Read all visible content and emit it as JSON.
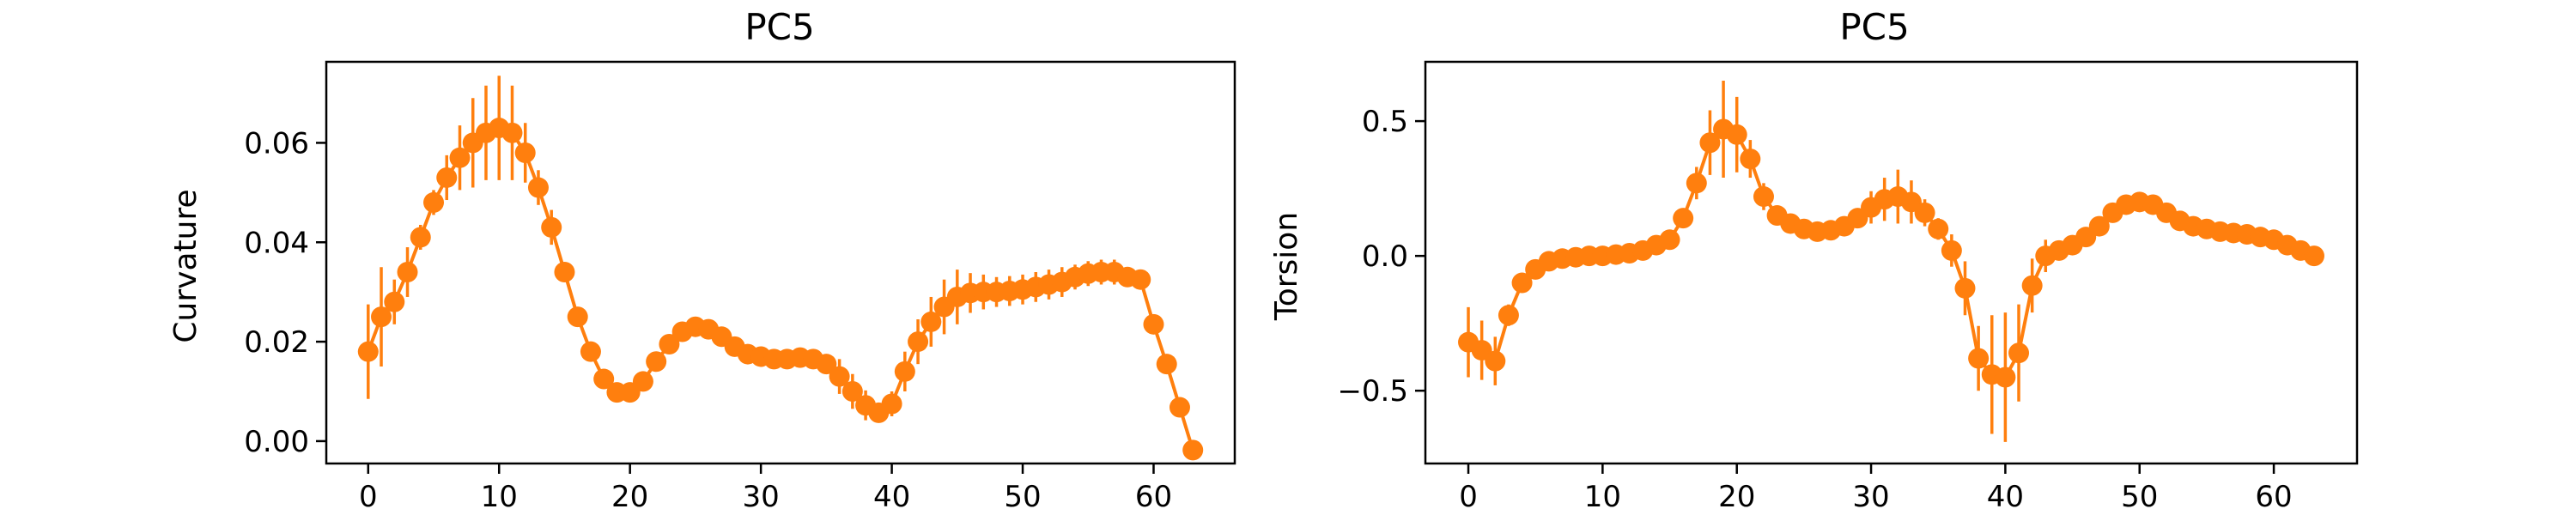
{
  "chart_data": [
    {
      "type": "line",
      "title": "PC5",
      "xlabel": "",
      "ylabel": "Curvature",
      "xlim": [
        -3.2,
        66.2
      ],
      "ylim": [
        -0.0045,
        0.0763
      ],
      "xticks": [
        0,
        10,
        20,
        30,
        40,
        50,
        60
      ],
      "yticks": [
        0.0,
        0.02,
        0.04,
        0.06
      ],
      "ytick_labels": [
        "0.00",
        "0.02",
        "0.04",
        "0.06"
      ],
      "series": [
        {
          "color": "#ff7f0e",
          "marker": "circle",
          "x": [
            0,
            1,
            2,
            3,
            4,
            5,
            6,
            7,
            8,
            9,
            10,
            11,
            12,
            13,
            14,
            15,
            16,
            17,
            18,
            19,
            20,
            21,
            22,
            23,
            24,
            25,
            26,
            27,
            28,
            29,
            30,
            31,
            32,
            33,
            34,
            35,
            36,
            37,
            38,
            39,
            40,
            41,
            42,
            43,
            44,
            45,
            46,
            47,
            48,
            49,
            50,
            51,
            52,
            53,
            54,
            55,
            56,
            57,
            58,
            59,
            60,
            61,
            62,
            63
          ],
          "y": [
            0.018,
            0.025,
            0.028,
            0.034,
            0.041,
            0.048,
            0.053,
            0.057,
            0.06,
            0.062,
            0.063,
            0.062,
            0.058,
            0.051,
            0.043,
            0.034,
            0.025,
            0.018,
            0.0125,
            0.0098,
            0.0098,
            0.012,
            0.016,
            0.0195,
            0.022,
            0.023,
            0.0225,
            0.021,
            0.019,
            0.0175,
            0.017,
            0.0165,
            0.0165,
            0.0168,
            0.0165,
            0.0155,
            0.013,
            0.01,
            0.0072,
            0.0057,
            0.0075,
            0.014,
            0.02,
            0.024,
            0.027,
            0.029,
            0.0298,
            0.03,
            0.03,
            0.0302,
            0.0305,
            0.031,
            0.0315,
            0.032,
            0.033,
            0.0337,
            0.034,
            0.034,
            0.033,
            0.0325,
            0.0235,
            0.0155,
            0.0068,
            -0.0018
          ],
          "yerr": [
            0.0095,
            0.01,
            0.0045,
            0.005,
            0.0025,
            0.0025,
            0.0045,
            0.0065,
            0.009,
            0.0095,
            0.0105,
            0.0095,
            0.006,
            0.0035,
            0.0035,
            0.002,
            0.0015,
            0.0015,
            0.0015,
            0.0015,
            0.0015,
            0.0015,
            0.0015,
            0.0015,
            0.0015,
            0.0015,
            0.0015,
            0.0015,
            0.0015,
            0.0015,
            0.0015,
            0.0015,
            0.0015,
            0.0015,
            0.0015,
            0.0015,
            0.0035,
            0.0035,
            0.003,
            0.002,
            0.0025,
            0.004,
            0.0045,
            0.005,
            0.0055,
            0.0055,
            0.004,
            0.0035,
            0.003,
            0.003,
            0.003,
            0.003,
            0.003,
            0.003,
            0.0025,
            0.0025,
            0.0025,
            0.0025,
            0.002,
            0.0015,
            0.0015,
            0.0015,
            0.0015,
            0.0015
          ]
        }
      ]
    },
    {
      "type": "line",
      "title": "PC5",
      "xlabel": "",
      "ylabel": "Torsion",
      "xlim": [
        -3.2,
        66.2
      ],
      "ylim": [
        -0.77,
        0.72
      ],
      "xticks": [
        0,
        10,
        20,
        30,
        40,
        50,
        60
      ],
      "yticks": [
        -0.5,
        0.0,
        0.5
      ],
      "ytick_labels": [
        "−0.5",
        "0.0",
        "0.5"
      ],
      "series": [
        {
          "color": "#ff7f0e",
          "marker": "circle",
          "x": [
            0,
            1,
            2,
            3,
            4,
            5,
            6,
            7,
            8,
            9,
            10,
            11,
            12,
            13,
            14,
            15,
            16,
            17,
            18,
            19,
            20,
            21,
            22,
            23,
            24,
            25,
            26,
            27,
            28,
            29,
            30,
            31,
            32,
            33,
            34,
            35,
            36,
            37,
            38,
            39,
            40,
            41,
            42,
            43,
            44,
            45,
            46,
            47,
            48,
            49,
            50,
            51,
            52,
            53,
            54,
            55,
            56,
            57,
            58,
            59,
            60,
            61,
            62,
            63
          ],
          "y": [
            -0.32,
            -0.35,
            -0.39,
            -0.22,
            -0.1,
            -0.05,
            -0.02,
            -0.01,
            -0.005,
            0.0,
            0.0,
            0.005,
            0.01,
            0.02,
            0.04,
            0.06,
            0.14,
            0.27,
            0.42,
            0.47,
            0.45,
            0.36,
            0.22,
            0.15,
            0.12,
            0.1,
            0.09,
            0.095,
            0.11,
            0.14,
            0.18,
            0.21,
            0.22,
            0.2,
            0.16,
            0.1,
            0.02,
            -0.12,
            -0.38,
            -0.44,
            -0.45,
            -0.36,
            -0.11,
            0.0,
            0.02,
            0.04,
            0.07,
            0.11,
            0.16,
            0.19,
            0.2,
            0.19,
            0.16,
            0.13,
            0.11,
            0.1,
            0.09,
            0.085,
            0.08,
            0.07,
            0.06,
            0.04,
            0.02,
            0.0
          ],
          "yerr": [
            0.13,
            0.11,
            0.09,
            0.04,
            0.03,
            0.02,
            0.015,
            0.01,
            0.01,
            0.01,
            0.01,
            0.01,
            0.01,
            0.01,
            0.01,
            0.01,
            0.03,
            0.06,
            0.12,
            0.18,
            0.14,
            0.07,
            0.05,
            0.03,
            0.02,
            0.02,
            0.02,
            0.02,
            0.02,
            0.03,
            0.06,
            0.08,
            0.1,
            0.08,
            0.05,
            0.04,
            0.06,
            0.1,
            0.12,
            0.22,
            0.24,
            0.18,
            0.1,
            0.06,
            0.03,
            0.02,
            0.02,
            0.02,
            0.02,
            0.02,
            0.02,
            0.02,
            0.02,
            0.02,
            0.02,
            0.02,
            0.02,
            0.02,
            0.02,
            0.02,
            0.02,
            0.02,
            0.02,
            0.02
          ]
        }
      ]
    }
  ]
}
